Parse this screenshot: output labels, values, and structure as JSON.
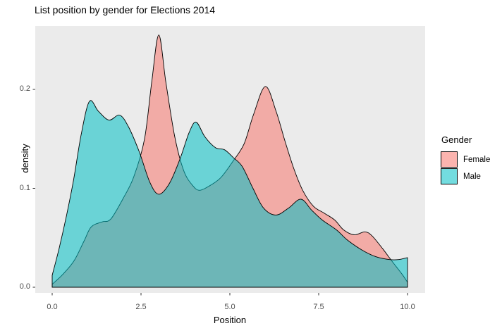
{
  "title": "List position by gender for Elections 2014",
  "chart_data": {
    "type": "area",
    "subtype": "overlapping-density",
    "title": "List position by gender for Elections 2014",
    "xlabel": "Position",
    "ylabel": "density",
    "x_ticks": [
      "0.0",
      "2.5",
      "5.0",
      "7.5",
      "10.0"
    ],
    "y_ticks": [
      "0.0",
      "0.1",
      "0.2"
    ],
    "xlim": [
      0,
      10
    ],
    "ylim": [
      0,
      0.264
    ],
    "grid": "off",
    "legend_position": "right",
    "panel_bg": "#EBEBEB",
    "stroke_color": "#000000",
    "tick_color": "#333333",
    "fill_alpha": 0.55,
    "legend": {
      "title": "Gender"
    },
    "series": [
      {
        "name": "Female",
        "color": "#F8766D",
        "points": [
          [
            0.0,
            0.003
          ],
          [
            0.3,
            0.013
          ],
          [
            0.62,
            0.027
          ],
          [
            0.9,
            0.047
          ],
          [
            1.1,
            0.061
          ],
          [
            1.4,
            0.066
          ],
          [
            1.65,
            0.069
          ],
          [
            2.0,
            0.09
          ],
          [
            2.3,
            0.112
          ],
          [
            2.6,
            0.15
          ],
          [
            2.8,
            0.207
          ],
          [
            3.0,
            0.255
          ],
          [
            3.2,
            0.207
          ],
          [
            3.45,
            0.152
          ],
          [
            3.7,
            0.118
          ],
          [
            3.95,
            0.103
          ],
          [
            4.15,
            0.098
          ],
          [
            4.45,
            0.103
          ],
          [
            4.75,
            0.111
          ],
          [
            5.08,
            0.127
          ],
          [
            5.4,
            0.145
          ],
          [
            5.67,
            0.175
          ],
          [
            6.0,
            0.203
          ],
          [
            6.3,
            0.178
          ],
          [
            6.55,
            0.148
          ],
          [
            6.8,
            0.12
          ],
          [
            7.05,
            0.098
          ],
          [
            7.35,
            0.082
          ],
          [
            7.65,
            0.075
          ],
          [
            7.95,
            0.068
          ],
          [
            8.2,
            0.058
          ],
          [
            8.5,
            0.053
          ],
          [
            8.8,
            0.056
          ],
          [
            9.0,
            0.052
          ],
          [
            9.3,
            0.039
          ],
          [
            9.55,
            0.027
          ],
          [
            9.85,
            0.013
          ],
          [
            10.0,
            0.005
          ]
        ]
      },
      {
        "name": "Male",
        "color": "#00BFC4",
        "points": [
          [
            0.0,
            0.012
          ],
          [
            0.2,
            0.04
          ],
          [
            0.4,
            0.072
          ],
          [
            0.6,
            0.108
          ],
          [
            0.82,
            0.155
          ],
          [
            1.05,
            0.188
          ],
          [
            1.3,
            0.178
          ],
          [
            1.6,
            0.169
          ],
          [
            1.9,
            0.174
          ],
          [
            2.15,
            0.162
          ],
          [
            2.45,
            0.137
          ],
          [
            2.75,
            0.106
          ],
          [
            3.0,
            0.094
          ],
          [
            3.3,
            0.105
          ],
          [
            3.6,
            0.13
          ],
          [
            3.85,
            0.156
          ],
          [
            4.05,
            0.167
          ],
          [
            4.3,
            0.152
          ],
          [
            4.6,
            0.141
          ],
          [
            4.85,
            0.139
          ],
          [
            5.1,
            0.131
          ],
          [
            5.35,
            0.122
          ],
          [
            5.65,
            0.1
          ],
          [
            5.95,
            0.08
          ],
          [
            6.3,
            0.073
          ],
          [
            6.65,
            0.08
          ],
          [
            7.0,
            0.089
          ],
          [
            7.3,
            0.078
          ],
          [
            7.6,
            0.068
          ],
          [
            8.0,
            0.058
          ],
          [
            8.3,
            0.048
          ],
          [
            8.7,
            0.038
          ],
          [
            9.1,
            0.031
          ],
          [
            9.5,
            0.028
          ],
          [
            9.75,
            0.028
          ],
          [
            10.0,
            0.03
          ]
        ]
      }
    ]
  }
}
